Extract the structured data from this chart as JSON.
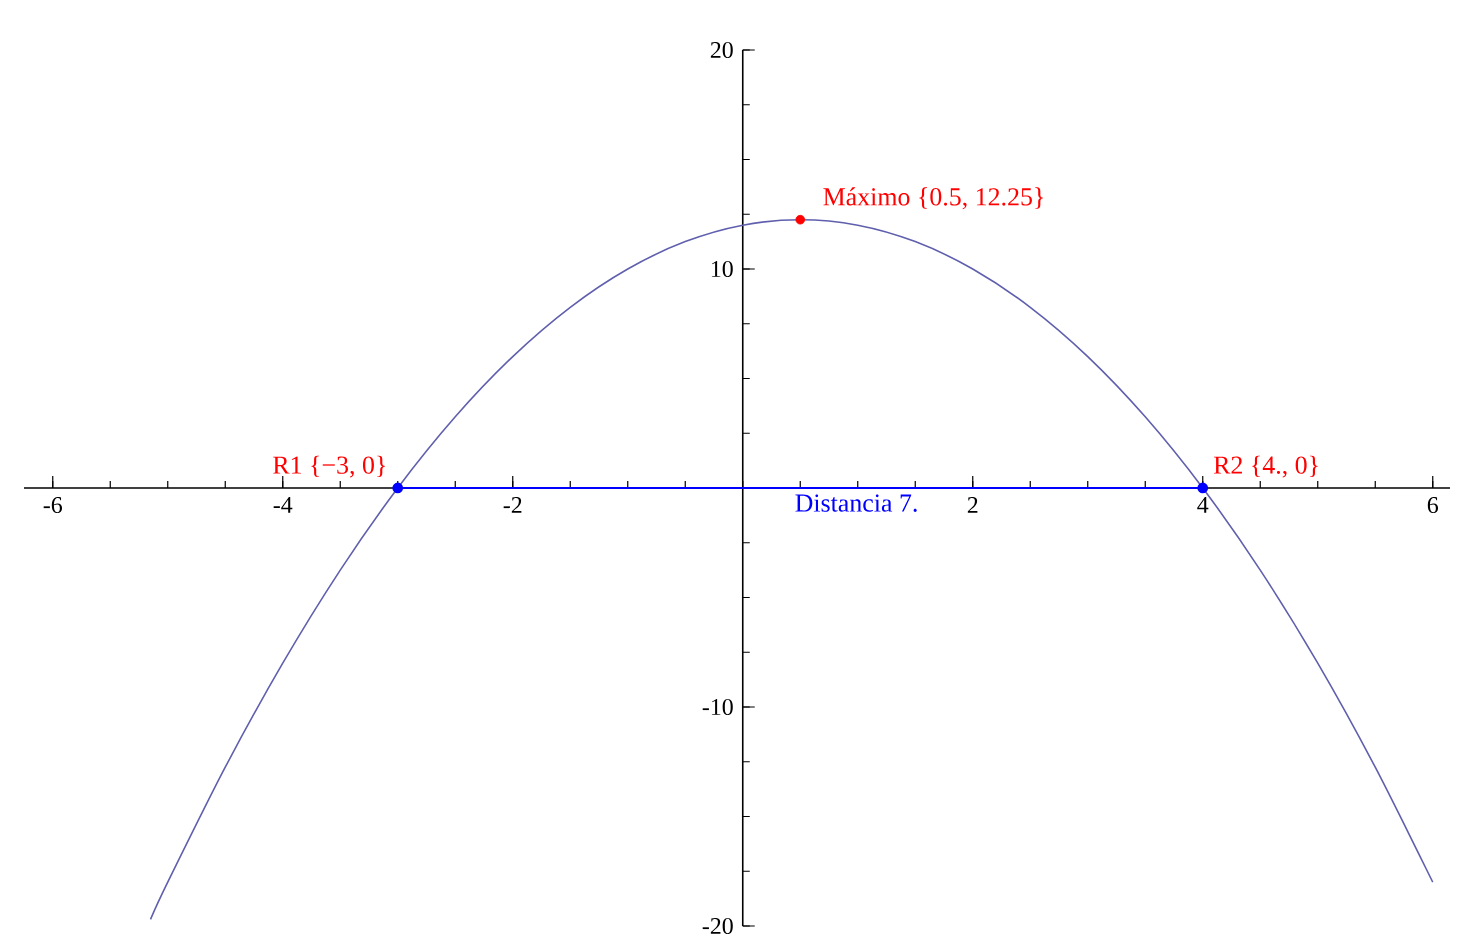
{
  "chart_data": {
    "type": "line",
    "series": [
      {
        "color": "#5f5fae",
        "marker": "none",
        "x": [
          -5.15,
          -5,
          -4.5,
          -4,
          -3.5,
          -3,
          -2.5,
          -2,
          -1.5,
          -1,
          -0.5,
          0,
          0.5,
          1,
          1.5,
          2,
          2.5,
          3,
          3.5,
          4,
          4.5,
          5,
          5.5,
          6
        ],
        "values": [
          -19.7,
          -18,
          -12.75,
          -8,
          -3.75,
          0,
          3.25,
          6,
          8.25,
          10,
          11.25,
          12,
          12.25,
          12,
          11.25,
          10,
          8.25,
          6,
          3.25,
          0,
          -3.75,
          -8,
          -12.75,
          -18
        ]
      },
      {
        "color": "#0000ff",
        "marker": "circle",
        "x": [
          -3,
          4
        ],
        "values": [
          0,
          0
        ]
      },
      {
        "type": "scatter",
        "color": "#ff0000",
        "marker": "circle",
        "x": [
          0.5
        ],
        "values": [
          12.25
        ]
      }
    ],
    "xlim": [
      -6.25,
      6.15
    ],
    "ylim": [
      -20,
      20
    ],
    "xticks": [
      -6,
      -4,
      -2,
      2,
      4,
      6
    ],
    "yticks": [
      -20,
      -10,
      10,
      20
    ],
    "annotations": [
      {
        "text": "R1 {−3, 0}",
        "x": -3,
        "y": 0
      },
      {
        "text": "R2 {4., 0}",
        "x": 4,
        "y": 0
      },
      {
        "text": "Máximo {0.5, 12.25}",
        "x": 0.5,
        "y": 12.25
      },
      {
        "text": "Distancia 7.",
        "x": 0.5,
        "y": 0
      }
    ]
  }
}
